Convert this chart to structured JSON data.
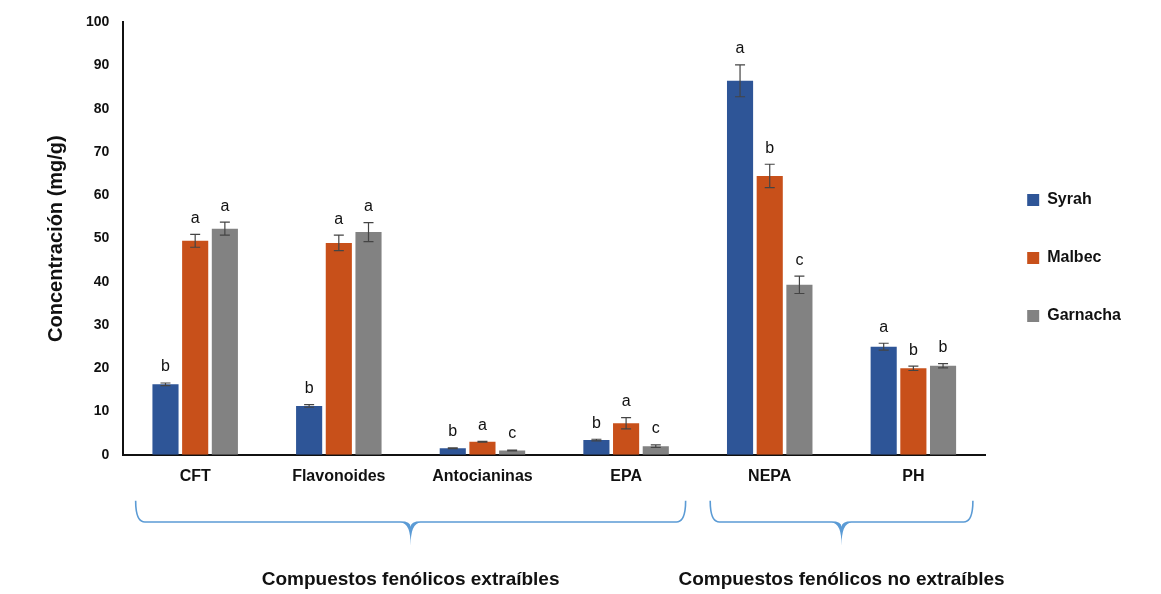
{
  "chart_data": {
    "type": "bar",
    "ylabel": "Concentración (mg/g)",
    "categories": [
      "CFT",
      "Flavonoides",
      "Antocianinas",
      "EPA",
      "NEPA",
      "PH"
    ],
    "series": [
      {
        "name": "Syrah",
        "color": "#2e5597",
        "values": [
          16.3,
          11.3,
          1.5,
          3.4,
          86.5,
          25
        ],
        "errors": [
          0.3,
          0.3,
          0.1,
          0.2,
          3.7,
          0.8
        ],
        "value_labels": [
          "b",
          "b",
          "b",
          "b",
          "a",
          "a"
        ]
      },
      {
        "name": "Malbec",
        "color": "#c8501a",
        "values": [
          49.5,
          49,
          3,
          7.3,
          64.5,
          20
        ],
        "errors": [
          1.5,
          1.8,
          0.1,
          1.3,
          2.7,
          0.5
        ],
        "value_labels": [
          "a",
          "a",
          "a",
          "a",
          "b",
          "b"
        ]
      },
      {
        "name": "Garnacha",
        "color": "#828282",
        "values": [
          52.3,
          51.5,
          1,
          2,
          39.3,
          20.6
        ],
        "errors": [
          1.5,
          2.2,
          0.1,
          0.3,
          2,
          0.5
        ],
        "value_labels": [
          "a",
          "a",
          "c",
          "c",
          "c",
          "b"
        ]
      }
    ],
    "ylim": [
      0,
      100
    ],
    "yticks": [
      0,
      10,
      20,
      30,
      40,
      50,
      60,
      70,
      80,
      90,
      100
    ],
    "grid": false,
    "legend": "right",
    "annotations": [
      "Compuestos fenólicos extraíbles",
      "Compuestos fenólicos no extraíbles"
    ]
  }
}
